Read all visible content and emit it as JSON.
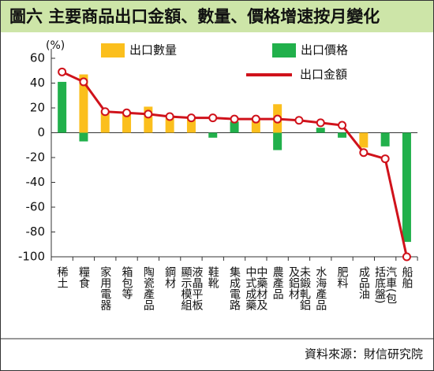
{
  "chart_data": {
    "type": "bar_line",
    "title": "圖六  主要商品出口金額、數量、價格增速按月變化",
    "y_unit": "(%)",
    "source": "資料來源：財信研究院",
    "categories": [
      "稀土",
      "糧食",
      "家用電器",
      "箱包等",
      "陶瓷產品",
      "鋼材",
      "液晶平板顯示模組",
      "鞋靴",
      "集成電路",
      "中藥材及中式成藥",
      "農產品",
      "未鍛軋鋁及鋁材",
      "水海產品",
      "肥料",
      "成品油",
      "汽車(包括底盤)",
      "船舶"
    ],
    "series": [
      {
        "name": "出口數量",
        "type": "bar",
        "color": "#fbbf1d",
        "values": [
          null,
          47,
          18,
          16,
          21,
          12,
          12,
          null,
          null,
          10,
          23,
          null,
          null,
          null,
          -12,
          null,
          null
        ]
      },
      {
        "name": "出口價格",
        "type": "bar",
        "color": "#21b04b",
        "values": [
          41,
          -7,
          null,
          null,
          null,
          null,
          null,
          -4,
          9,
          null,
          -14,
          null,
          4,
          -4,
          null,
          -11,
          -88
        ]
      },
      {
        "name": "出口金額",
        "type": "line",
        "color": "#d0121b",
        "values": [
          49,
          41,
          17,
          16,
          15,
          13,
          12,
          12,
          11,
          11,
          11,
          10,
          8,
          6,
          -16,
          -21,
          -100
        ]
      }
    ],
    "ylim": [
      -100,
      60
    ],
    "yticks": [
      -100,
      -80,
      -60,
      -40,
      -20,
      0,
      20,
      40,
      60
    ]
  }
}
